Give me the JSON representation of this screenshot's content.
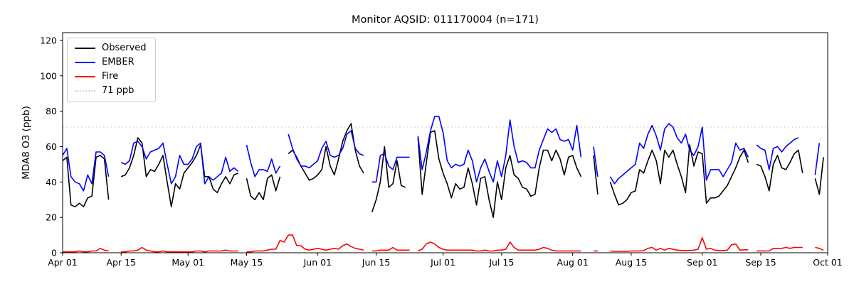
{
  "chart_data": {
    "type": "line",
    "title": "Monitor AQSID: 011170004 (n=171)",
    "ylabel": "MDA8 O3 (ppb)",
    "yticks": [
      0,
      20,
      40,
      60,
      80,
      100,
      120
    ],
    "ylim": [
      0,
      124.4
    ],
    "x_total_days": 183,
    "x_range_note": "daily values from Apr 01 to Oct 01",
    "xticks": [
      {
        "label": "Apr 01",
        "day": 0
      },
      {
        "label": "Apr 15",
        "day": 14
      },
      {
        "label": "May 01",
        "day": 30
      },
      {
        "label": "May 15",
        "day": 44
      },
      {
        "label": "Jun 01",
        "day": 61
      },
      {
        "label": "Jun 15",
        "day": 75
      },
      {
        "label": "Jul 01",
        "day": 91
      },
      {
        "label": "Jul 15",
        "day": 105
      },
      {
        "label": "Aug 01",
        "day": 122
      },
      {
        "label": "Aug 15",
        "day": 136
      },
      {
        "label": "Sep 01",
        "day": 153
      },
      {
        "label": "Sep 15",
        "day": 167
      },
      {
        "label": "Oct 01",
        "day": 183
      }
    ],
    "threshold": {
      "value": 71,
      "label": "71 ppb",
      "color": "#d3d3d3",
      "style": "dotted"
    },
    "legend_position": "upper-left",
    "legend": [
      {
        "label": "Observed",
        "color": "#000000",
        "style": "solid"
      },
      {
        "label": "EMBER",
        "color": "#0000ff",
        "style": "solid"
      },
      {
        "label": "Fire",
        "color": "#ff0000",
        "style": "solid"
      },
      {
        "label": "71 ppb",
        "color": "#d3d3d3",
        "style": "dotted"
      }
    ],
    "series": [
      {
        "name": "Observed",
        "color": "#000000",
        "values": [
          52,
          54,
          27,
          26,
          28,
          26,
          31,
          32,
          54,
          55,
          53,
          30,
          null,
          null,
          43,
          44,
          48,
          55,
          65,
          62,
          43,
          47,
          46,
          50,
          55,
          40,
          26,
          39,
          36,
          45,
          48,
          51,
          55,
          61,
          43,
          43,
          36,
          34,
          39,
          43,
          39,
          44,
          45,
          null,
          42,
          32,
          30,
          34,
          30,
          42,
          44,
          35,
          43,
          null,
          56,
          58,
          54,
          49,
          45,
          41,
          42,
          44,
          47,
          60,
          49,
          44,
          53,
          63,
          69,
          73,
          58,
          49,
          45,
          null,
          23,
          30,
          40,
          60,
          37,
          39,
          52,
          38,
          37,
          null,
          null,
          65,
          33,
          51,
          68,
          69,
          53,
          45,
          39,
          31,
          39,
          36,
          37,
          48,
          39,
          27,
          42,
          43,
          30,
          20,
          40,
          30,
          48,
          55,
          44,
          42,
          37,
          36,
          32,
          33,
          48,
          58,
          58,
          52,
          58,
          53,
          44,
          54,
          55,
          48,
          43,
          null,
          null,
          55,
          33,
          null,
          null,
          40,
          33,
          27,
          28,
          30,
          34,
          35,
          47,
          45,
          52,
          58,
          52,
          39,
          58,
          54,
          58,
          50,
          43,
          34,
          61,
          49,
          57,
          56,
          28,
          31,
          31,
          32,
          35,
          38,
          43,
          48,
          54,
          58,
          51,
          null,
          50,
          49,
          43,
          35,
          50,
          55,
          48,
          47,
          51,
          56,
          58,
          45,
          null,
          null,
          42,
          33,
          54
        ]
      },
      {
        "name": "EMBER",
        "color": "#0000ff",
        "values": [
          55,
          59,
          43,
          40,
          39,
          35,
          44,
          39,
          57,
          57,
          55,
          43,
          null,
          null,
          51,
          50,
          52,
          62,
          63,
          60,
          53,
          57,
          58,
          59,
          62,
          50,
          39,
          43,
          55,
          50,
          50,
          53,
          60,
          62,
          39,
          43,
          41,
          43,
          45,
          54,
          46,
          48,
          46,
          null,
          61,
          51,
          43,
          47,
          47,
          46,
          53,
          45,
          49,
          null,
          67,
          59,
          53,
          49,
          49,
          48,
          50,
          52,
          59,
          63,
          55,
          54,
          55,
          59,
          67,
          69,
          59,
          56,
          55,
          null,
          40,
          40,
          55,
          56,
          49,
          47,
          54,
          54,
          54,
          54,
          null,
          66,
          47,
          57,
          69,
          77,
          77,
          68,
          52,
          48,
          50,
          49,
          50,
          58,
          52,
          40,
          48,
          53,
          46,
          40,
          52,
          43,
          55,
          75,
          60,
          51,
          52,
          51,
          48,
          48,
          58,
          64,
          70,
          68,
          70,
          64,
          63,
          64,
          58,
          72,
          54,
          null,
          null,
          60,
          43,
          null,
          null,
          43,
          39,
          42,
          44,
          46,
          48,
          50,
          62,
          59,
          67,
          72,
          66,
          58,
          70,
          73,
          71,
          65,
          62,
          67,
          58,
          55,
          60,
          71,
          41,
          47,
          47,
          47,
          43,
          47,
          51,
          62,
          58,
          59,
          54,
          null,
          61,
          59,
          58,
          47,
          59,
          60,
          57,
          60,
          62,
          64,
          65,
          null,
          null,
          null,
          44,
          62,
          null
        ]
      },
      {
        "name": "Fire",
        "color": "#ff0000",
        "values": [
          0.5,
          0.5,
          0.5,
          0.5,
          1,
          0.5,
          0.5,
          1,
          1,
          2.5,
          1.5,
          1,
          null,
          null,
          0.5,
          0.5,
          1,
          1,
          1.5,
          3,
          1.5,
          1,
          0.5,
          0.5,
          1,
          0.5,
          0.5,
          0.5,
          0.5,
          0.5,
          0.5,
          0.5,
          1,
          1,
          0.5,
          1,
          1,
          1,
          1,
          1.5,
          1,
          1,
          1,
          null,
          0.5,
          0.5,
          1,
          1,
          1,
          1.5,
          2,
          2,
          7,
          6,
          10,
          10,
          4,
          4,
          2,
          1.5,
          2,
          2.5,
          2,
          1.5,
          2,
          2.5,
          2,
          4,
          5,
          3.5,
          2.5,
          2,
          1.5,
          null,
          1,
          1,
          1.5,
          1.5,
          1.5,
          3,
          1.5,
          1.5,
          1.5,
          1.5,
          null,
          1,
          2,
          5,
          6,
          5,
          3,
          2,
          1.5,
          1.5,
          1.5,
          1.5,
          1.5,
          1.5,
          1.5,
          1,
          1,
          1.5,
          1,
          1,
          1.5,
          1.5,
          2,
          6,
          3,
          1.5,
          1.5,
          1.5,
          1.5,
          1.5,
          2,
          3,
          2.5,
          1.5,
          1,
          1,
          1,
          1,
          1,
          1,
          1,
          null,
          null,
          1,
          1,
          null,
          null,
          1,
          0.8,
          0.8,
          0.8,
          0.8,
          1,
          1,
          1,
          1.2,
          2.5,
          3,
          1.5,
          2.5,
          1.5,
          2.5,
          2,
          1.5,
          1.3,
          1.3,
          1.3,
          1.5,
          2,
          8.5,
          2,
          2.5,
          1.5,
          1.3,
          1.3,
          1.5,
          4.5,
          5,
          1.5,
          1.7,
          1.7,
          null,
          1,
          1,
          1,
          1,
          2.5,
          2.5,
          2.5,
          3,
          2.5,
          3,
          3,
          3,
          null,
          null,
          3,
          2.5,
          1.5
        ]
      }
    ]
  }
}
